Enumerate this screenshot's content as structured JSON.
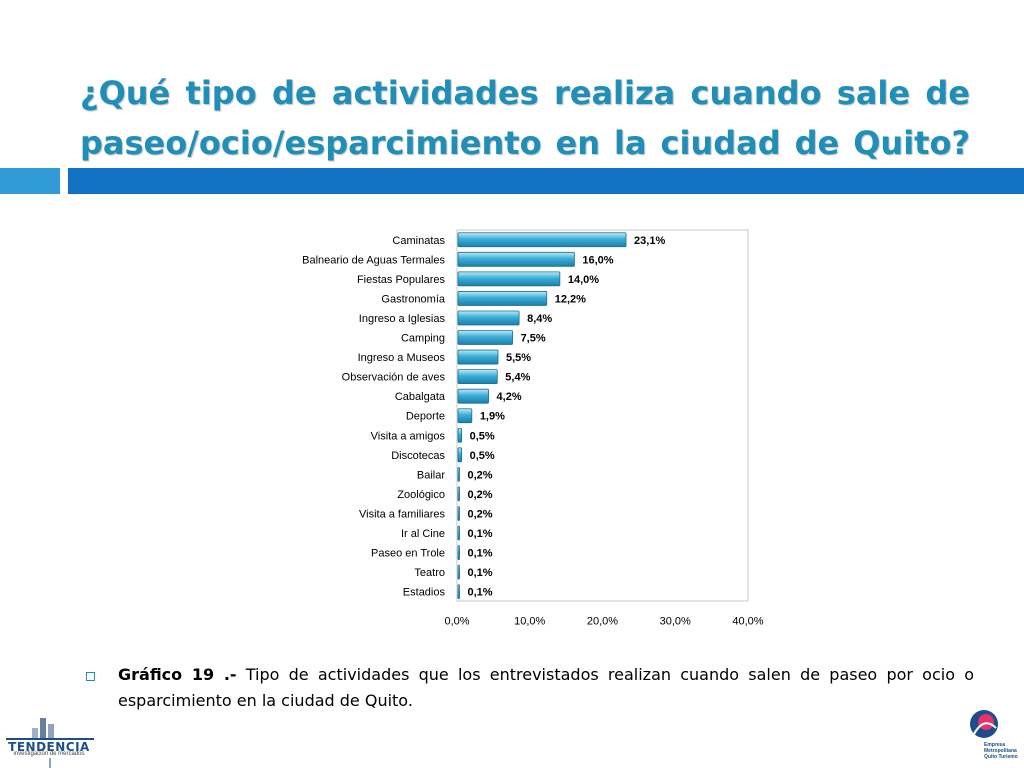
{
  "page": {
    "title": "¿Qué tipo de actividades realiza cuando sale de paseo/ocio/esparcimiento en la ciudad de Quito?",
    "caption_label": "Gráfico 19 .-",
    "caption_text": " Tipo de actividades que los entrevistados realizan cuando salen de paseo por ocio o esparcimiento en la ciudad de Quito.",
    "logo_left_name": "TENDENCIA",
    "logo_left_tagline": "investigación de mercados",
    "logo_right_text": [
      "Empresa",
      "Metropolitana",
      "Quito Turismo"
    ],
    "colors": {
      "title": "#1f8fb8",
      "band_left": "#2f9ad6",
      "band_right": "#1272c4",
      "bar": "#3aaed8"
    }
  },
  "chart_data": {
    "type": "bar",
    "orientation": "horizontal",
    "categories": [
      "Caminatas",
      "Balneario de Aguas Termales",
      "Fiestas Populares",
      "Gastronomía",
      "Ingreso a Iglesias",
      "Camping",
      "Ingreso a Museos",
      "Observación de aves",
      "Cabalgata",
      "Deporte",
      "Visita a amigos",
      "Discotecas",
      "Bailar",
      "Zoológico",
      "Visita a familiares",
      "Ir al Cine",
      "Paseo en Trole",
      "Teatro",
      "Estadios"
    ],
    "values": [
      23.1,
      16.0,
      14.0,
      12.2,
      8.4,
      7.5,
      5.5,
      5.4,
      4.2,
      1.9,
      0.5,
      0.5,
      0.2,
      0.2,
      0.2,
      0.1,
      0.1,
      0.1,
      0.1
    ],
    "data_labels": [
      "23,1%",
      "16,0%",
      "14,0%",
      "12,2%",
      "8,4%",
      "7,5%",
      "5,5%",
      "5,4%",
      "4,2%",
      "1,9%",
      "0,5%",
      "0,5%",
      "0,2%",
      "0,2%",
      "0,2%",
      "0,1%",
      "0,1%",
      "0,1%",
      "0,1%"
    ],
    "xlim": [
      0,
      40
    ],
    "xticks": [
      "0,0%",
      "10,0%",
      "20,0%",
      "30,0%",
      "40,0%"
    ],
    "grid": false,
    "legend": "none",
    "title": "",
    "xlabel": "",
    "ylabel": ""
  }
}
